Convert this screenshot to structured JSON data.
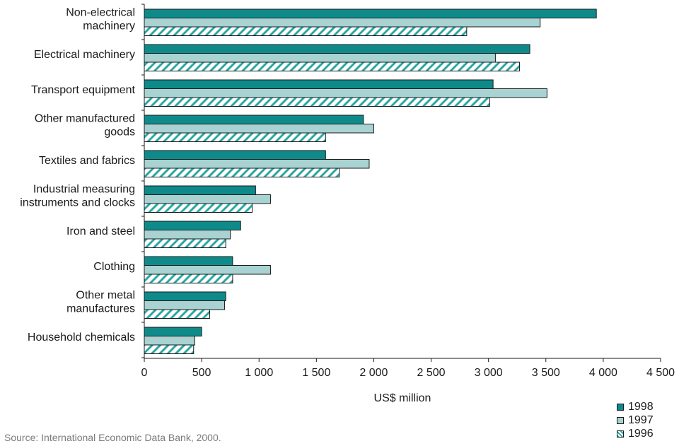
{
  "chart_data": {
    "type": "bar",
    "orientation": "horizontal",
    "categories": [
      [
        "Non-electrical",
        "machinery"
      ],
      [
        "Electrical machinery"
      ],
      [
        "Transport equipment"
      ],
      [
        "Other manufactured",
        "goods"
      ],
      [
        "Textiles and fabrics"
      ],
      [
        "Industrial measuring",
        "instruments and clocks"
      ],
      [
        "Iron and steel"
      ],
      [
        "Clothing"
      ],
      [
        "Other metal",
        "manufactures"
      ],
      [
        "Household chemicals"
      ]
    ],
    "series": [
      {
        "name": "1998",
        "color": "#0f8a8a",
        "pattern": "solid",
        "values": [
          3940,
          3360,
          3040,
          1910,
          1580,
          970,
          840,
          770,
          710,
          500
        ]
      },
      {
        "name": "1997",
        "color": "#a9d2d2",
        "pattern": "solid",
        "values": [
          3450,
          3060,
          3510,
          2000,
          1960,
          1100,
          750,
          1100,
          700,
          440
        ]
      },
      {
        "name": "1996",
        "color": "#2aa6a6",
        "pattern": "hatched",
        "values": [
          2810,
          3270,
          3010,
          1580,
          1700,
          940,
          710,
          770,
          570,
          430
        ]
      }
    ],
    "xlabel": "US$ million",
    "xlim": [
      0,
      4500
    ],
    "xticks": [
      0,
      500,
      1000,
      1500,
      2000,
      2500,
      3000,
      3500,
      4000,
      4500
    ],
    "xtick_labels": [
      "0",
      "500",
      "1 000",
      "1 500",
      "2 000",
      "2 500",
      "3 000",
      "3 500",
      "4 000",
      "4 500"
    ],
    "grid": false,
    "legend_position": "bottom-right"
  },
  "source": "Source: International Economic Data Bank, 2000."
}
